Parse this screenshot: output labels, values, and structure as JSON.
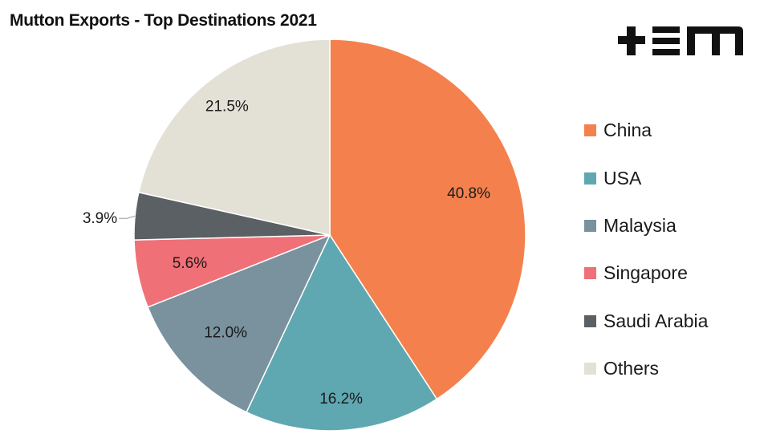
{
  "brand": {
    "logo_text": "TEM"
  },
  "chart_data": {
    "type": "pie",
    "title": "Mutton Exports - Top Destinations 2021",
    "legend_position": "right",
    "slices": [
      {
        "name": "China",
        "value": 40.8,
        "label": "40.8%",
        "color": "#F4814D"
      },
      {
        "name": "USA",
        "value": 16.2,
        "label": "16.2%",
        "color": "#5FA8B1"
      },
      {
        "name": "Malaysia",
        "value": 12.0,
        "label": "12.0%",
        "color": "#7A919E"
      },
      {
        "name": "Singapore",
        "value": 5.6,
        "label": "5.6%",
        "color": "#F07077"
      },
      {
        "name": "Saudi Arabia",
        "value": 3.9,
        "label": "3.9%",
        "color": "#5B6065"
      },
      {
        "name": "Others",
        "value": 21.5,
        "label": "21.5%",
        "color": "#E3E1D6"
      }
    ]
  }
}
